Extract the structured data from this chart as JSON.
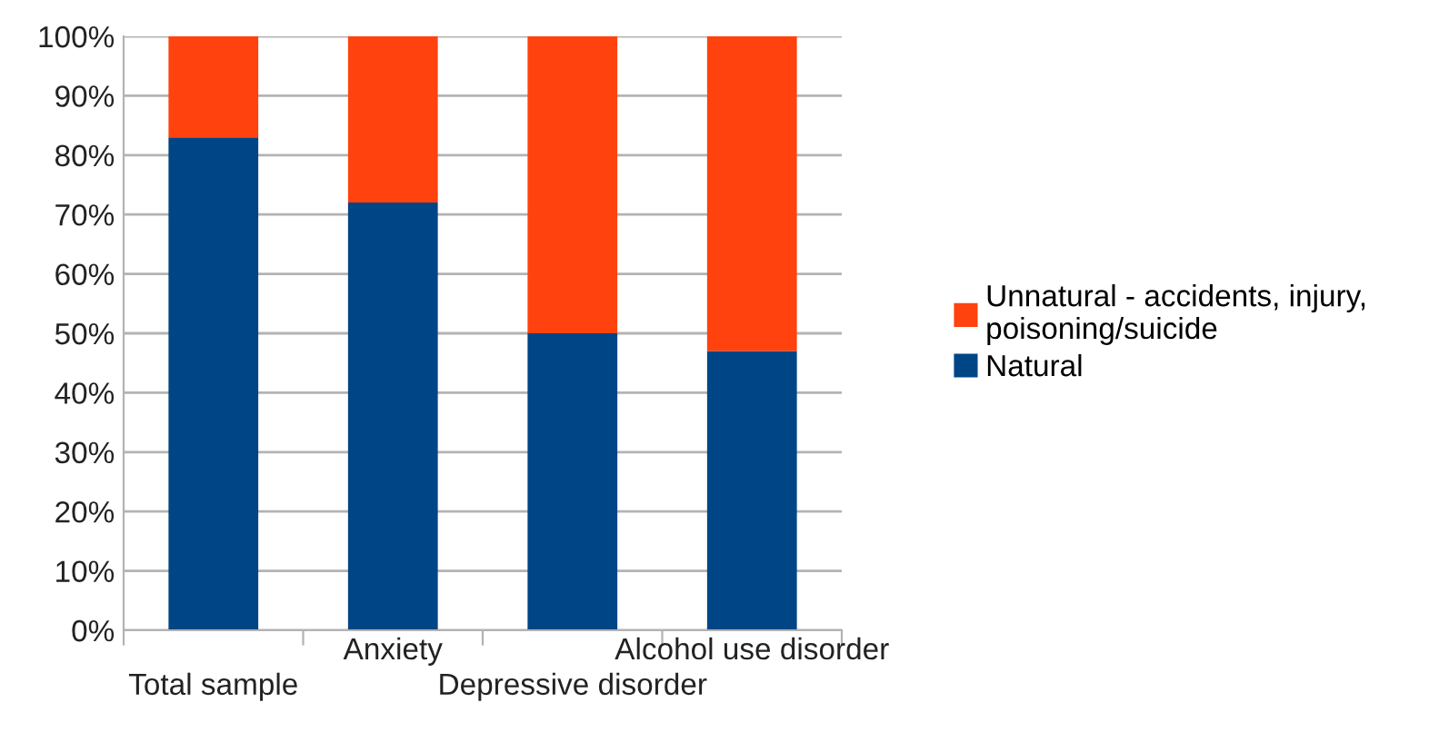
{
  "chart_data": {
    "type": "bar",
    "stacked": true,
    "categories": [
      "Total sample",
      "Anxiety",
      "Depressive disorder",
      "Alcohol use disorder"
    ],
    "series": [
      {
        "name": "Natural",
        "color": "#004586",
        "values": [
          83,
          72,
          50,
          47
        ]
      },
      {
        "name": "Unnatural - accidents, injury,\npoisoning/suicide",
        "color": "#ff420e",
        "values": [
          17,
          28,
          50,
          53
        ]
      }
    ],
    "ylim": [
      0,
      100
    ],
    "yticks": [
      {
        "value": 0,
        "label": "0%"
      },
      {
        "value": 10,
        "label": "10%"
      },
      {
        "value": 20,
        "label": "20%"
      },
      {
        "value": 30,
        "label": "30%"
      },
      {
        "value": 40,
        "label": "40%"
      },
      {
        "value": 50,
        "label": "50%"
      },
      {
        "value": 60,
        "label": "60%"
      },
      {
        "value": 70,
        "label": "70%"
      },
      {
        "value": 80,
        "label": "80%"
      },
      {
        "value": 90,
        "label": "90%"
      },
      {
        "value": 100,
        "label": "100%"
      }
    ],
    "grid": "y",
    "legend": "right"
  }
}
